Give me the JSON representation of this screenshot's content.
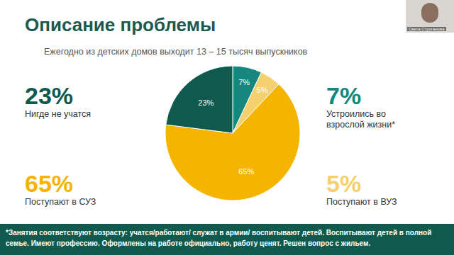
{
  "chart_data": {
    "type": "pie",
    "title": "Описание проблемы",
    "subtitle": "Ежегодно из детских домов выходит 13 – 15 тысяч выпускников",
    "categories": [
      "Устроились во взрослой жизни*",
      "Поступают в ВУЗ",
      "Поступают в СУЗ",
      "Нигде не учатся"
    ],
    "values": [
      7,
      5,
      65,
      23
    ],
    "value_labels": [
      "7%",
      "5%",
      "65%",
      "23%"
    ],
    "colors": [
      "#17877d",
      "#f5d06e",
      "#f4b400",
      "#0f5a4d"
    ],
    "data_labels": true,
    "annotations": [
      "*Занятия соответствуют возрасту: учатся/работают/ служат в армии/ воспитывают детей. Воспитывают детей в полной семье. Имеют профессию. Оформлены на работе официально, работу ценят. Решен вопрос с жильем.",
      "Света Строганова"
    ]
  }
}
